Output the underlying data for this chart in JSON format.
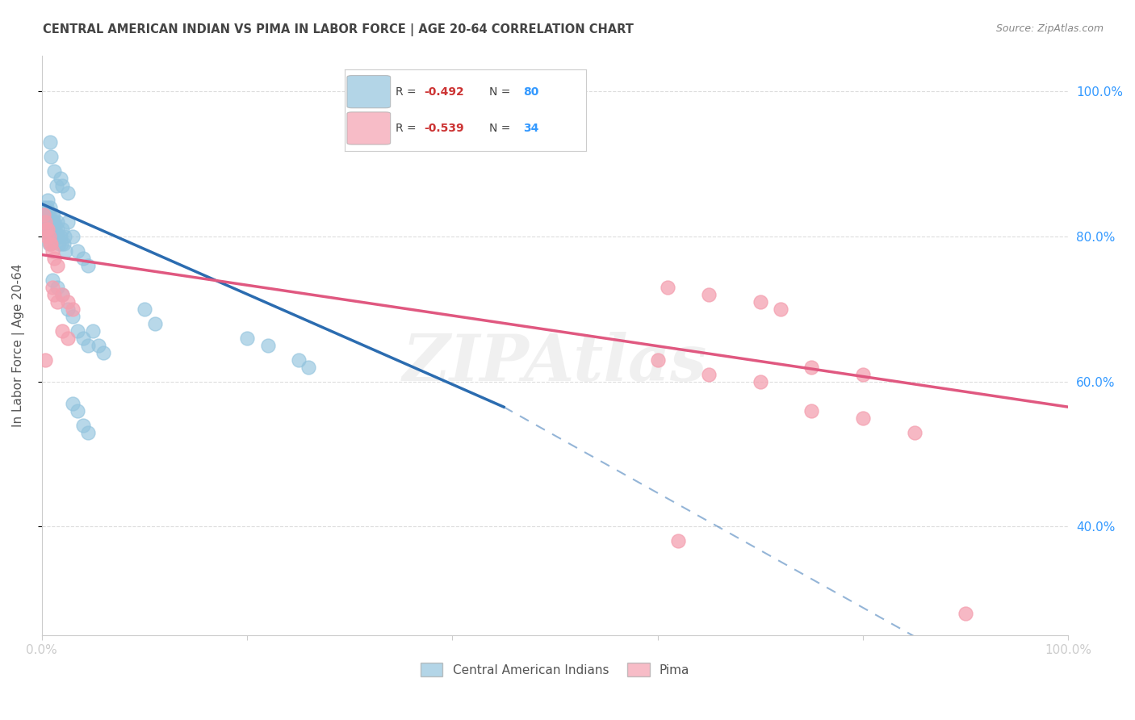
{
  "title": "CENTRAL AMERICAN INDIAN VS PIMA IN LABOR FORCE | AGE 20-64 CORRELATION CHART",
  "source": "Source: ZipAtlas.com",
  "ylabel": "In Labor Force | Age 20-64",
  "xlim": [
    0.0,
    1.0
  ],
  "ylim": [
    0.25,
    1.05
  ],
  "background_color": "#ffffff",
  "grid_color": "#dddddd",
  "blue_color": "#93c4de",
  "pink_color": "#f4a0b0",
  "blue_line_color": "#2b6cb0",
  "pink_line_color": "#e05880",
  "blue_scatter": [
    [
      0.001,
      0.83
    ],
    [
      0.002,
      0.82
    ],
    [
      0.002,
      0.84
    ],
    [
      0.003,
      0.83
    ],
    [
      0.003,
      0.82
    ],
    [
      0.003,
      0.81
    ],
    [
      0.004,
      0.83
    ],
    [
      0.004,
      0.82
    ],
    [
      0.004,
      0.81
    ],
    [
      0.005,
      0.84
    ],
    [
      0.005,
      0.83
    ],
    [
      0.005,
      0.82
    ],
    [
      0.005,
      0.81
    ],
    [
      0.006,
      0.85
    ],
    [
      0.006,
      0.83
    ],
    [
      0.006,
      0.82
    ],
    [
      0.006,
      0.81
    ],
    [
      0.007,
      0.83
    ],
    [
      0.007,
      0.82
    ],
    [
      0.007,
      0.8
    ],
    [
      0.007,
      0.79
    ],
    [
      0.008,
      0.84
    ],
    [
      0.008,
      0.82
    ],
    [
      0.008,
      0.81
    ],
    [
      0.008,
      0.8
    ],
    [
      0.009,
      0.82
    ],
    [
      0.009,
      0.81
    ],
    [
      0.009,
      0.8
    ],
    [
      0.01,
      0.83
    ],
    [
      0.01,
      0.82
    ],
    [
      0.01,
      0.81
    ],
    [
      0.01,
      0.8
    ],
    [
      0.011,
      0.83
    ],
    [
      0.011,
      0.82
    ],
    [
      0.011,
      0.81
    ],
    [
      0.011,
      0.8
    ],
    [
      0.012,
      0.82
    ],
    [
      0.013,
      0.81
    ],
    [
      0.014,
      0.8
    ],
    [
      0.015,
      0.82
    ],
    [
      0.015,
      0.81
    ],
    [
      0.016,
      0.8
    ],
    [
      0.017,
      0.79
    ],
    [
      0.018,
      0.8
    ],
    [
      0.019,
      0.79
    ],
    [
      0.02,
      0.81
    ],
    [
      0.021,
      0.79
    ],
    [
      0.022,
      0.8
    ],
    [
      0.023,
      0.78
    ],
    [
      0.025,
      0.82
    ],
    [
      0.03,
      0.8
    ],
    [
      0.035,
      0.78
    ],
    [
      0.04,
      0.77
    ],
    [
      0.045,
      0.76
    ],
    [
      0.008,
      0.93
    ],
    [
      0.009,
      0.91
    ],
    [
      0.012,
      0.89
    ],
    [
      0.014,
      0.87
    ],
    [
      0.018,
      0.88
    ],
    [
      0.02,
      0.87
    ],
    [
      0.025,
      0.86
    ],
    [
      0.01,
      0.74
    ],
    [
      0.015,
      0.73
    ],
    [
      0.02,
      0.72
    ],
    [
      0.025,
      0.7
    ],
    [
      0.03,
      0.69
    ],
    [
      0.035,
      0.67
    ],
    [
      0.04,
      0.66
    ],
    [
      0.045,
      0.65
    ],
    [
      0.05,
      0.67
    ],
    [
      0.055,
      0.65
    ],
    [
      0.06,
      0.64
    ],
    [
      0.1,
      0.7
    ],
    [
      0.11,
      0.68
    ],
    [
      0.2,
      0.66
    ],
    [
      0.22,
      0.65
    ],
    [
      0.25,
      0.63
    ],
    [
      0.26,
      0.62
    ],
    [
      0.03,
      0.57
    ],
    [
      0.035,
      0.56
    ],
    [
      0.04,
      0.54
    ],
    [
      0.045,
      0.53
    ]
  ],
  "pink_scatter": [
    [
      0.002,
      0.83
    ],
    [
      0.003,
      0.82
    ],
    [
      0.004,
      0.81
    ],
    [
      0.005,
      0.8
    ],
    [
      0.006,
      0.81
    ],
    [
      0.007,
      0.8
    ],
    [
      0.008,
      0.79
    ],
    [
      0.009,
      0.79
    ],
    [
      0.01,
      0.78
    ],
    [
      0.012,
      0.77
    ],
    [
      0.015,
      0.76
    ],
    [
      0.01,
      0.73
    ],
    [
      0.012,
      0.72
    ],
    [
      0.015,
      0.71
    ],
    [
      0.02,
      0.72
    ],
    [
      0.025,
      0.71
    ],
    [
      0.03,
      0.7
    ],
    [
      0.02,
      0.67
    ],
    [
      0.025,
      0.66
    ],
    [
      0.003,
      0.63
    ],
    [
      0.61,
      0.73
    ],
    [
      0.65,
      0.72
    ],
    [
      0.7,
      0.71
    ],
    [
      0.72,
      0.7
    ],
    [
      0.6,
      0.63
    ],
    [
      0.65,
      0.61
    ],
    [
      0.7,
      0.6
    ],
    [
      0.75,
      0.62
    ],
    [
      0.8,
      0.61
    ],
    [
      0.75,
      0.56
    ],
    [
      0.8,
      0.55
    ],
    [
      0.85,
      0.53
    ],
    [
      0.62,
      0.38
    ],
    [
      0.9,
      0.28
    ]
  ]
}
